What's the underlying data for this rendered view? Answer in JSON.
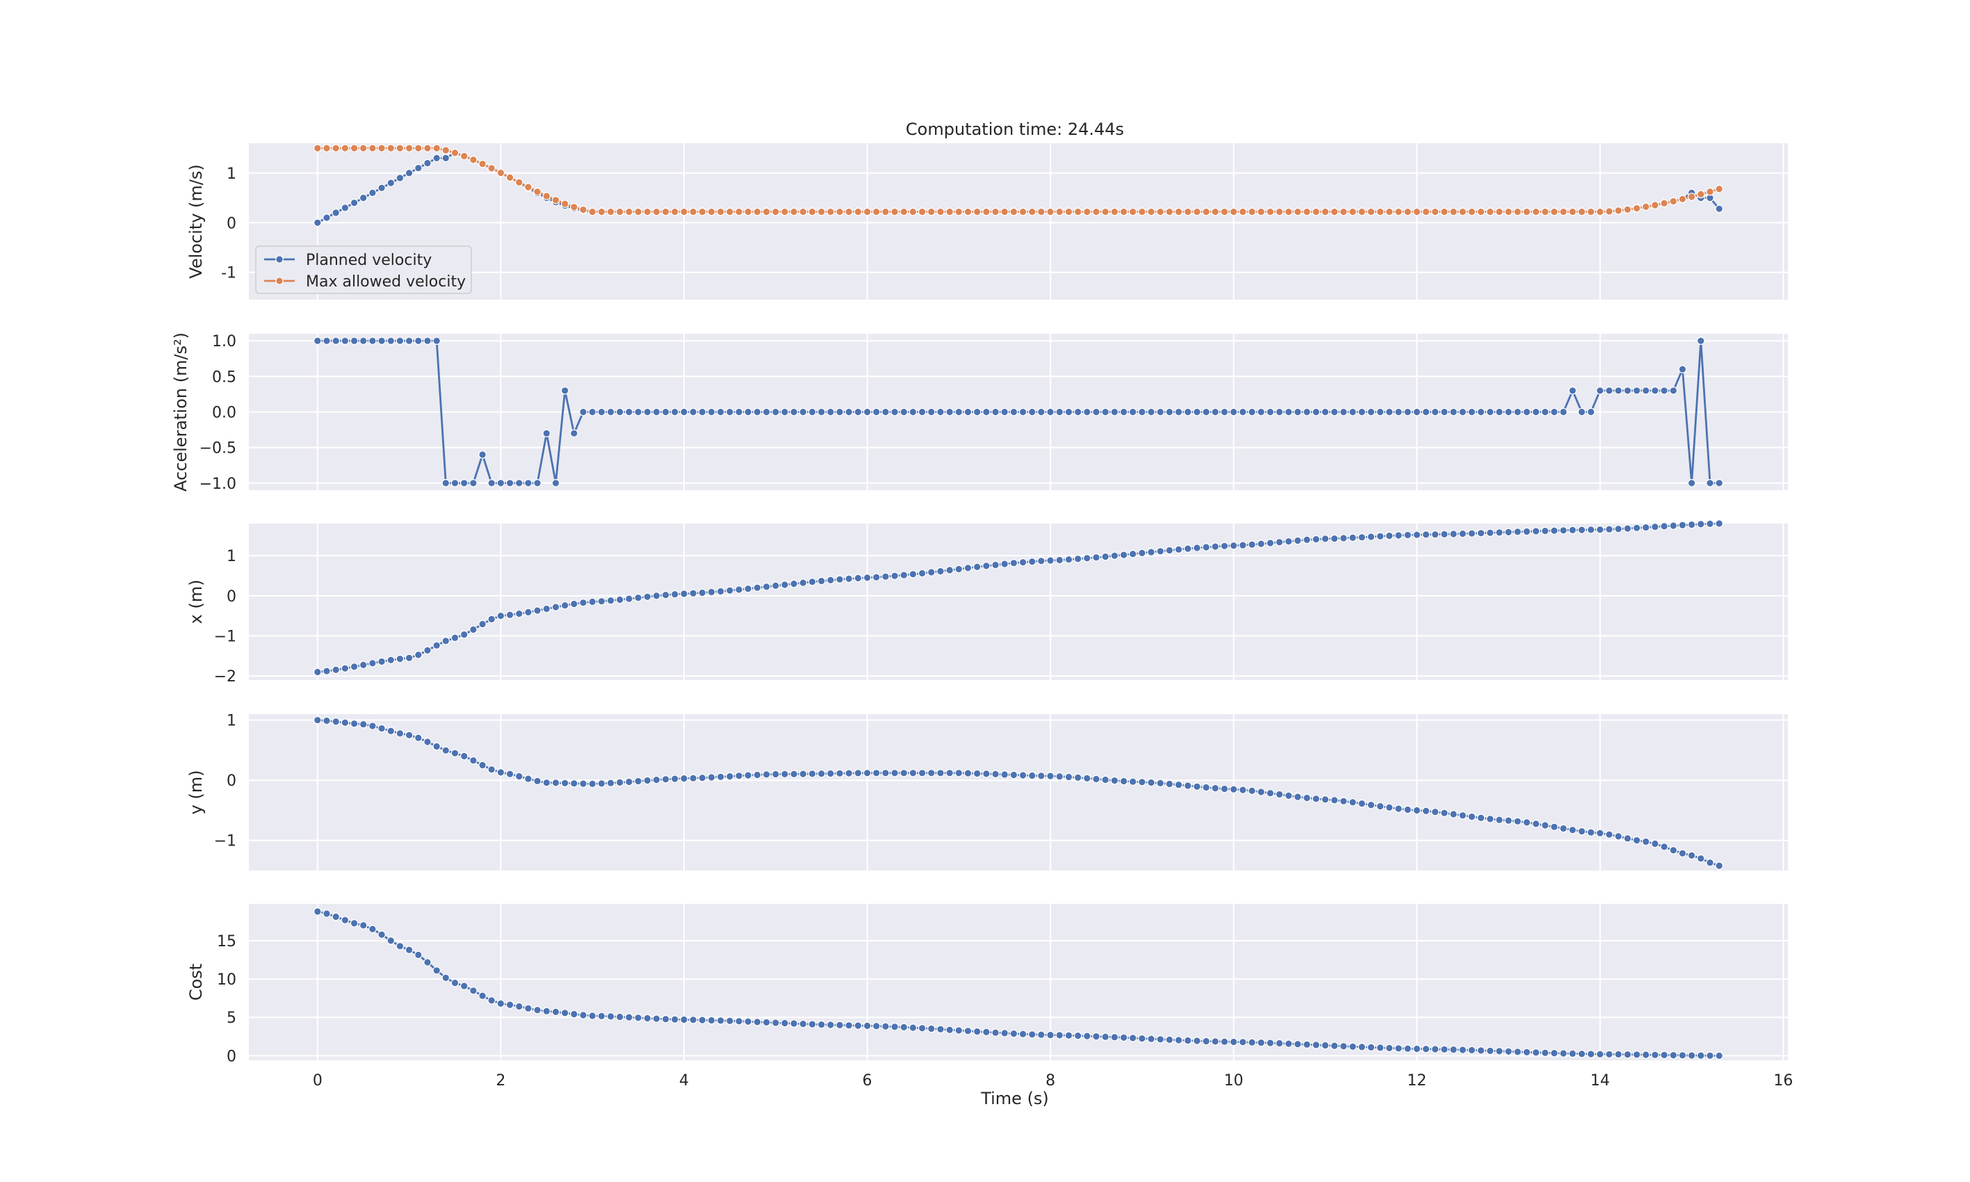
{
  "title": "Computation time: 24.44s",
  "colors": {
    "planned": "#4c72b0",
    "max_allowed": "#dd8452",
    "panel_bg": "#eaeaf2",
    "grid": "#ffffff"
  },
  "chart_data": [
    {
      "type": "line",
      "ylabel": "Velocity (m/s)",
      "xlabel": "",
      "xlim": [
        -0.75,
        16.05
      ],
      "ylim": [
        -1.55,
        1.6
      ],
      "yticks": [
        -1,
        0,
        1
      ],
      "xticks": [
        0,
        2,
        4,
        6,
        8,
        10,
        12,
        14,
        16
      ],
      "grid": true,
      "legend": {
        "location": "lower-left",
        "entries": [
          "Planned velocity",
          "Max allowed velocity"
        ]
      },
      "series": [
        {
          "name": "Planned velocity",
          "color": "#4c72b0",
          "x": "t = 0.0 … 15.3 step 0.1",
          "values": "ramp 0 → 1.30 by 0.1 (t ≤ 1.3); decreases to ≈0.22 by t≈3.0; constant ≈0.22 to t≈14.0; rises to ≈0.60 at t≈15.0; then 0.50, 0.28"
        },
        {
          "name": "Max allowed velocity",
          "color": "#dd8452",
          "x": "t = 0.0 … 15.3 step 0.1",
          "values": "1.5 (t ≤ 1.3); decreases to ≈0.22 by t≈3.0; constant ≈0.22 to t≈14.0; rises to ≈0.68 at t≈15.3"
        }
      ]
    },
    {
      "type": "line",
      "ylabel": "Acceleration (m/s²)",
      "xlim": [
        -0.75,
        16.05
      ],
      "ylim": [
        -1.1,
        1.1
      ],
      "yticks": [
        -1.0,
        -0.5,
        0.0,
        0.5,
        1.0
      ],
      "yticklabels": [
        "−1.0",
        "−0.5",
        "0.0",
        "0.5",
        "1.0"
      ],
      "series": [
        {
          "name": "",
          "color": "#4c72b0",
          "x": "t = 0.0 … 15.3 step 0.1",
          "values": "1.0 (t 0–1.3); −1.0 (t 1.4–1.7); −0.6 (1.8); −1.0 (1.9–2.4); −0.3 (2.5); −1.0 (2.6); 0.3 (2.7); −0.3 (2.8); 0.0 (2.9–13.6); 0.3 (13.7); 0.0 (13.8–13.9); 0.3 (14.0–14.8); 0.6 (14.9); −1.0 (15.0); 1.0 (15.1); −1.0 (15.2–15.3)"
        }
      ]
    },
    {
      "type": "line",
      "ylabel": "x (m)",
      "xlim": [
        -0.75,
        16.05
      ],
      "ylim": [
        -2.1,
        1.8
      ],
      "yticks": [
        -2,
        -1,
        0,
        1
      ],
      "yticklabels": [
        "−2",
        "−1",
        "0",
        "1"
      ],
      "series": [
        {
          "name": "",
          "color": "#4c72b0",
          "x": "t = 0.0 … 15.3 step 0.1",
          "values": [
            [
              0,
              -1.9
            ],
            [
              1.0,
              -1.55
            ],
            [
              1.5,
              -1.05
            ],
            [
              2.0,
              -0.5
            ],
            [
              3.0,
              -0.15
            ],
            [
              4.0,
              0.05
            ],
            [
              6.0,
              0.45
            ],
            [
              8.0,
              0.88
            ],
            [
              10.0,
              1.25
            ],
            [
              11.0,
              1.42
            ],
            [
              12.0,
              1.52
            ],
            [
              14.0,
              1.65
            ],
            [
              15.3,
              1.8
            ]
          ]
        }
      ]
    },
    {
      "type": "line",
      "ylabel": "y (m)",
      "xlim": [
        -0.75,
        16.05
      ],
      "ylim": [
        -1.5,
        1.1
      ],
      "yticks": [
        -1,
        0,
        1
      ],
      "yticklabels": [
        "−1",
        "0",
        "1"
      ],
      "series": [
        {
          "name": "",
          "color": "#4c72b0",
          "x": "t = 0.0 … 15.3 step 0.1",
          "values": [
            [
              0,
              1.0
            ],
            [
              0.5,
              0.93
            ],
            [
              1.0,
              0.75
            ],
            [
              1.5,
              0.45
            ],
            [
              2.0,
              0.13
            ],
            [
              2.5,
              -0.04
            ],
            [
              3.0,
              -0.06
            ],
            [
              4.0,
              0.03
            ],
            [
              5.0,
              0.1
            ],
            [
              6.0,
              0.12
            ],
            [
              7.0,
              0.12
            ],
            [
              8.0,
              0.07
            ],
            [
              9.0,
              -0.03
            ],
            [
              10.0,
              -0.15
            ],
            [
              11.0,
              -0.32
            ],
            [
              12.0,
              -0.5
            ],
            [
              13.0,
              -0.67
            ],
            [
              14.0,
              -0.88
            ],
            [
              14.5,
              -1.02
            ],
            [
              15.0,
              -1.25
            ],
            [
              15.3,
              -1.42
            ]
          ]
        }
      ]
    },
    {
      "type": "line",
      "ylabel": "Cost",
      "xlabel": "Time (s)",
      "xlim": [
        -0.75,
        16.05
      ],
      "ylim": [
        -0.6,
        19.8
      ],
      "yticks": [
        0,
        5,
        10,
        15
      ],
      "xticks": [
        0,
        2,
        4,
        6,
        8,
        10,
        12,
        14,
        16
      ],
      "series": [
        {
          "name": "",
          "color": "#4c72b0",
          "x": "t = 0.0 … 15.3 step 0.1",
          "values": [
            [
              0,
              18.8
            ],
            [
              0.5,
              17.0
            ],
            [
              1.0,
              13.8
            ],
            [
              1.5,
              9.5
            ],
            [
              2.0,
              6.8
            ],
            [
              2.5,
              5.8
            ],
            [
              3.0,
              5.2
            ],
            [
              4.0,
              4.7
            ],
            [
              6.0,
              3.9
            ],
            [
              8.0,
              2.7
            ],
            [
              10.0,
              1.8
            ],
            [
              12.0,
              0.9
            ],
            [
              14.0,
              0.2
            ],
            [
              15.3,
              0.0
            ]
          ]
        }
      ]
    }
  ]
}
